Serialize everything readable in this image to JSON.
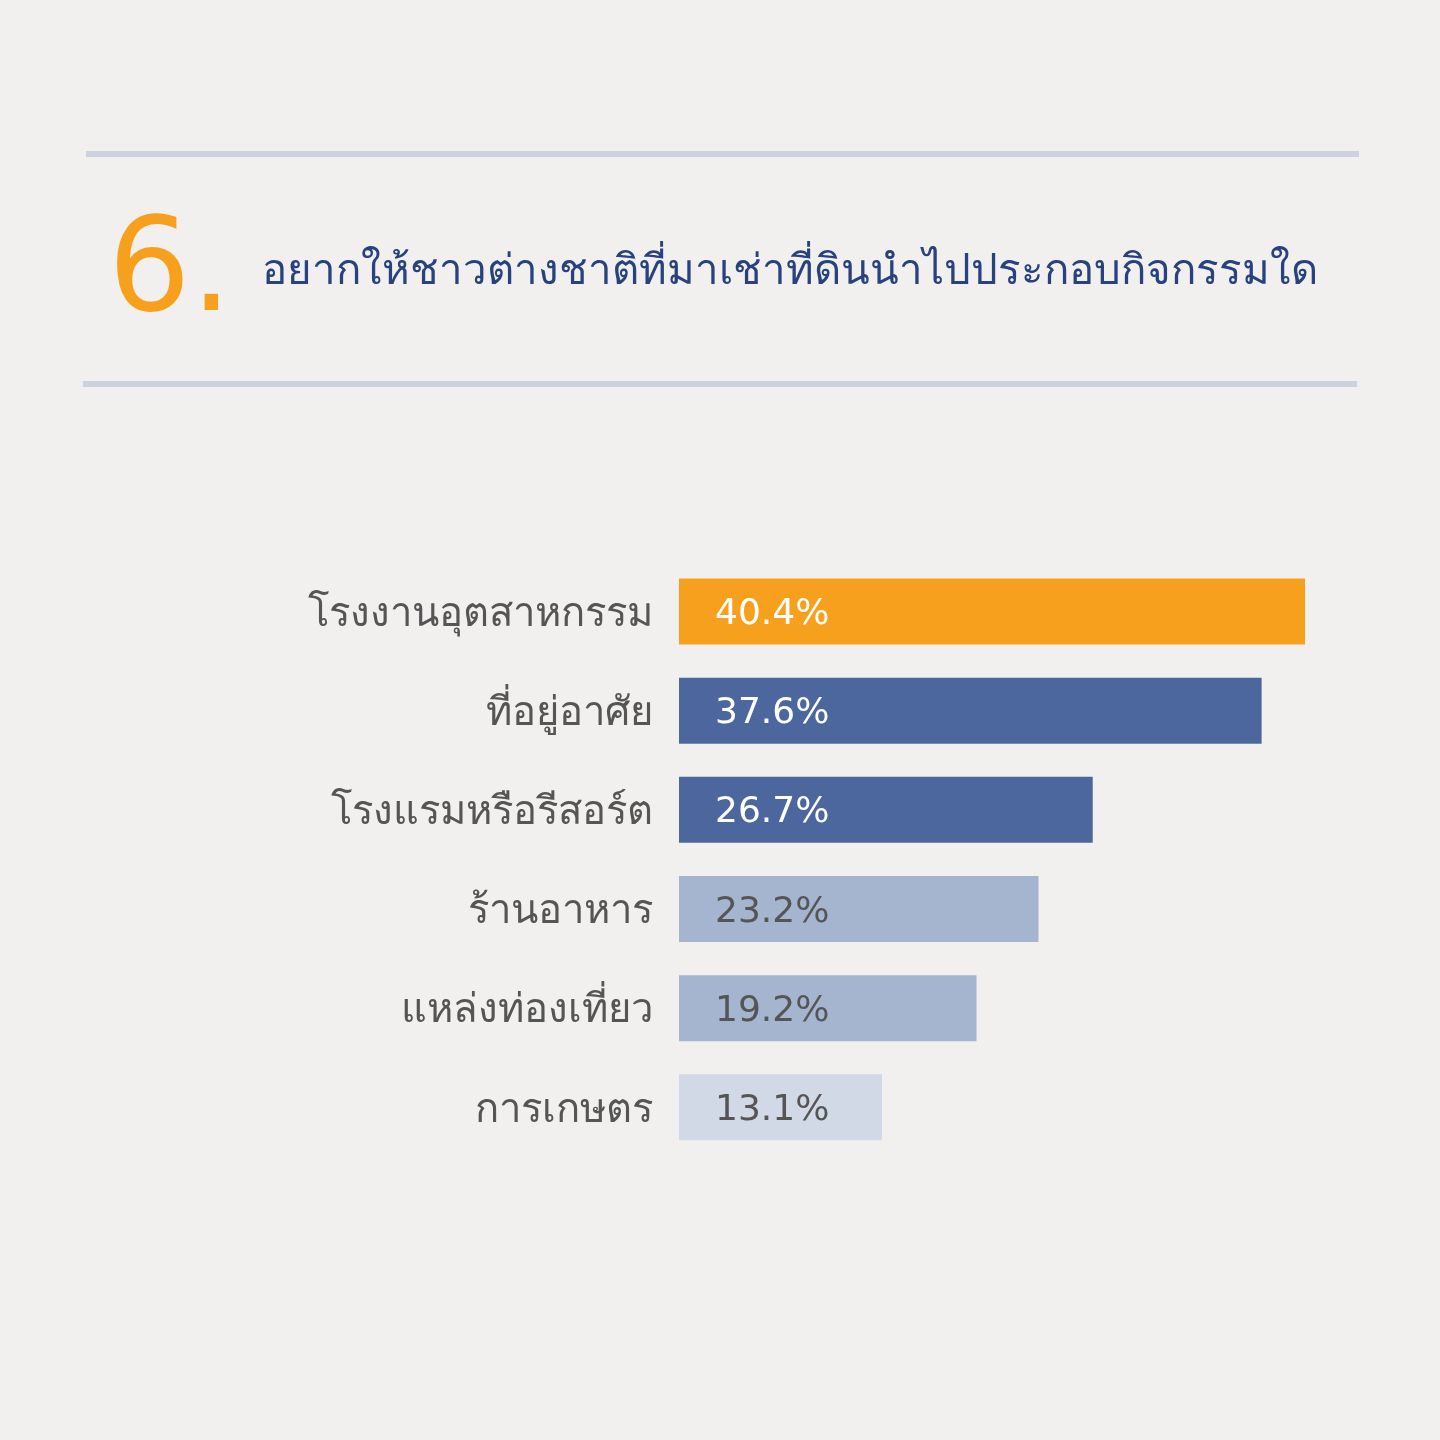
{
  "chart_data": {
    "type": "bar",
    "orientation": "horizontal",
    "title": "อยากให้ชาวต่างชาติที่มาเช่าที่ดินนำไปประกอบกิจกรรมใด",
    "annotations": [
      "6."
    ],
    "categories": [
      "โรงงานอุตสาหกรรม",
      "ที่อยู่อาศัย",
      "โรงแรมหรือรีสอร์ต",
      "ร้านอาหาร",
      "แหล่งท่องเที่ยว",
      "การเกษตร"
    ],
    "values": [
      40.4,
      37.6,
      26.7,
      23.2,
      19.2,
      13.1
    ],
    "value_labels": [
      "40.4%",
      "37.6%",
      "26.7%",
      "23.2%",
      "19.2%",
      "13.1%"
    ],
    "colors": [
      "#f7a01e",
      "#4b679e",
      "#4b679e",
      "#a5b4cf",
      "#a5b4cf",
      "#d1d9e6"
    ]
  }
}
